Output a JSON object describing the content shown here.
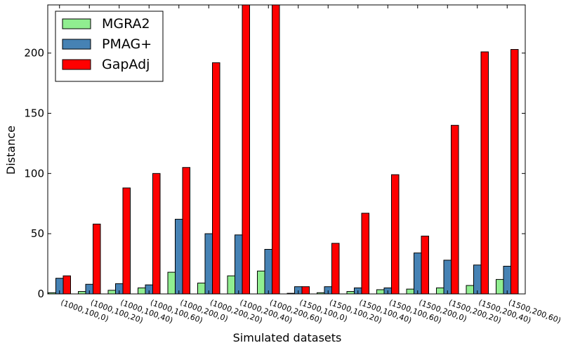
{
  "chart_data": {
    "type": "bar",
    "title": "",
    "xlabel": "Simulated datasets",
    "ylabel": "Distance",
    "ylim": [
      0,
      240
    ],
    "yticks": [
      0,
      50,
      100,
      150,
      200
    ],
    "grid": false,
    "legend_position": "top-left",
    "categories": [
      "(1000,100,0)",
      "(1000,100,20)",
      "(1000,100,40)",
      "(1000,100,60)",
      "(1000,200,0)",
      "(1000,200,20)",
      "(1000,200,40)",
      "(1000,200,60)",
      "(1500,100,0)",
      "(1500,100,20)",
      "(1500,100,40)",
      "(1500,100,60)",
      "(1500,200,0)",
      "(1500,200,20)",
      "(1500,200,40)",
      "(1500,200,60)"
    ],
    "series": [
      {
        "name": "MGRA2",
        "color": "#90ee90",
        "values": [
          1,
          2,
          3,
          5,
          18,
          9,
          15,
          19,
          0.5,
          1,
          2,
          3.5,
          4,
          5,
          7,
          12
        ]
      },
      {
        "name": "PMAG+",
        "color": "#4682b4",
        "values": [
          13,
          8,
          8.5,
          7.5,
          62,
          50,
          49,
          37,
          6,
          6,
          5,
          5,
          34,
          28,
          24,
          23
        ]
      },
      {
        "name": "GapAdj",
        "color": "#ff0000",
        "values": [
          15,
          58,
          88,
          100,
          105,
          192,
          240,
          240,
          6,
          42,
          67,
          99,
          48,
          140,
          201,
          203
        ]
      }
    ]
  }
}
